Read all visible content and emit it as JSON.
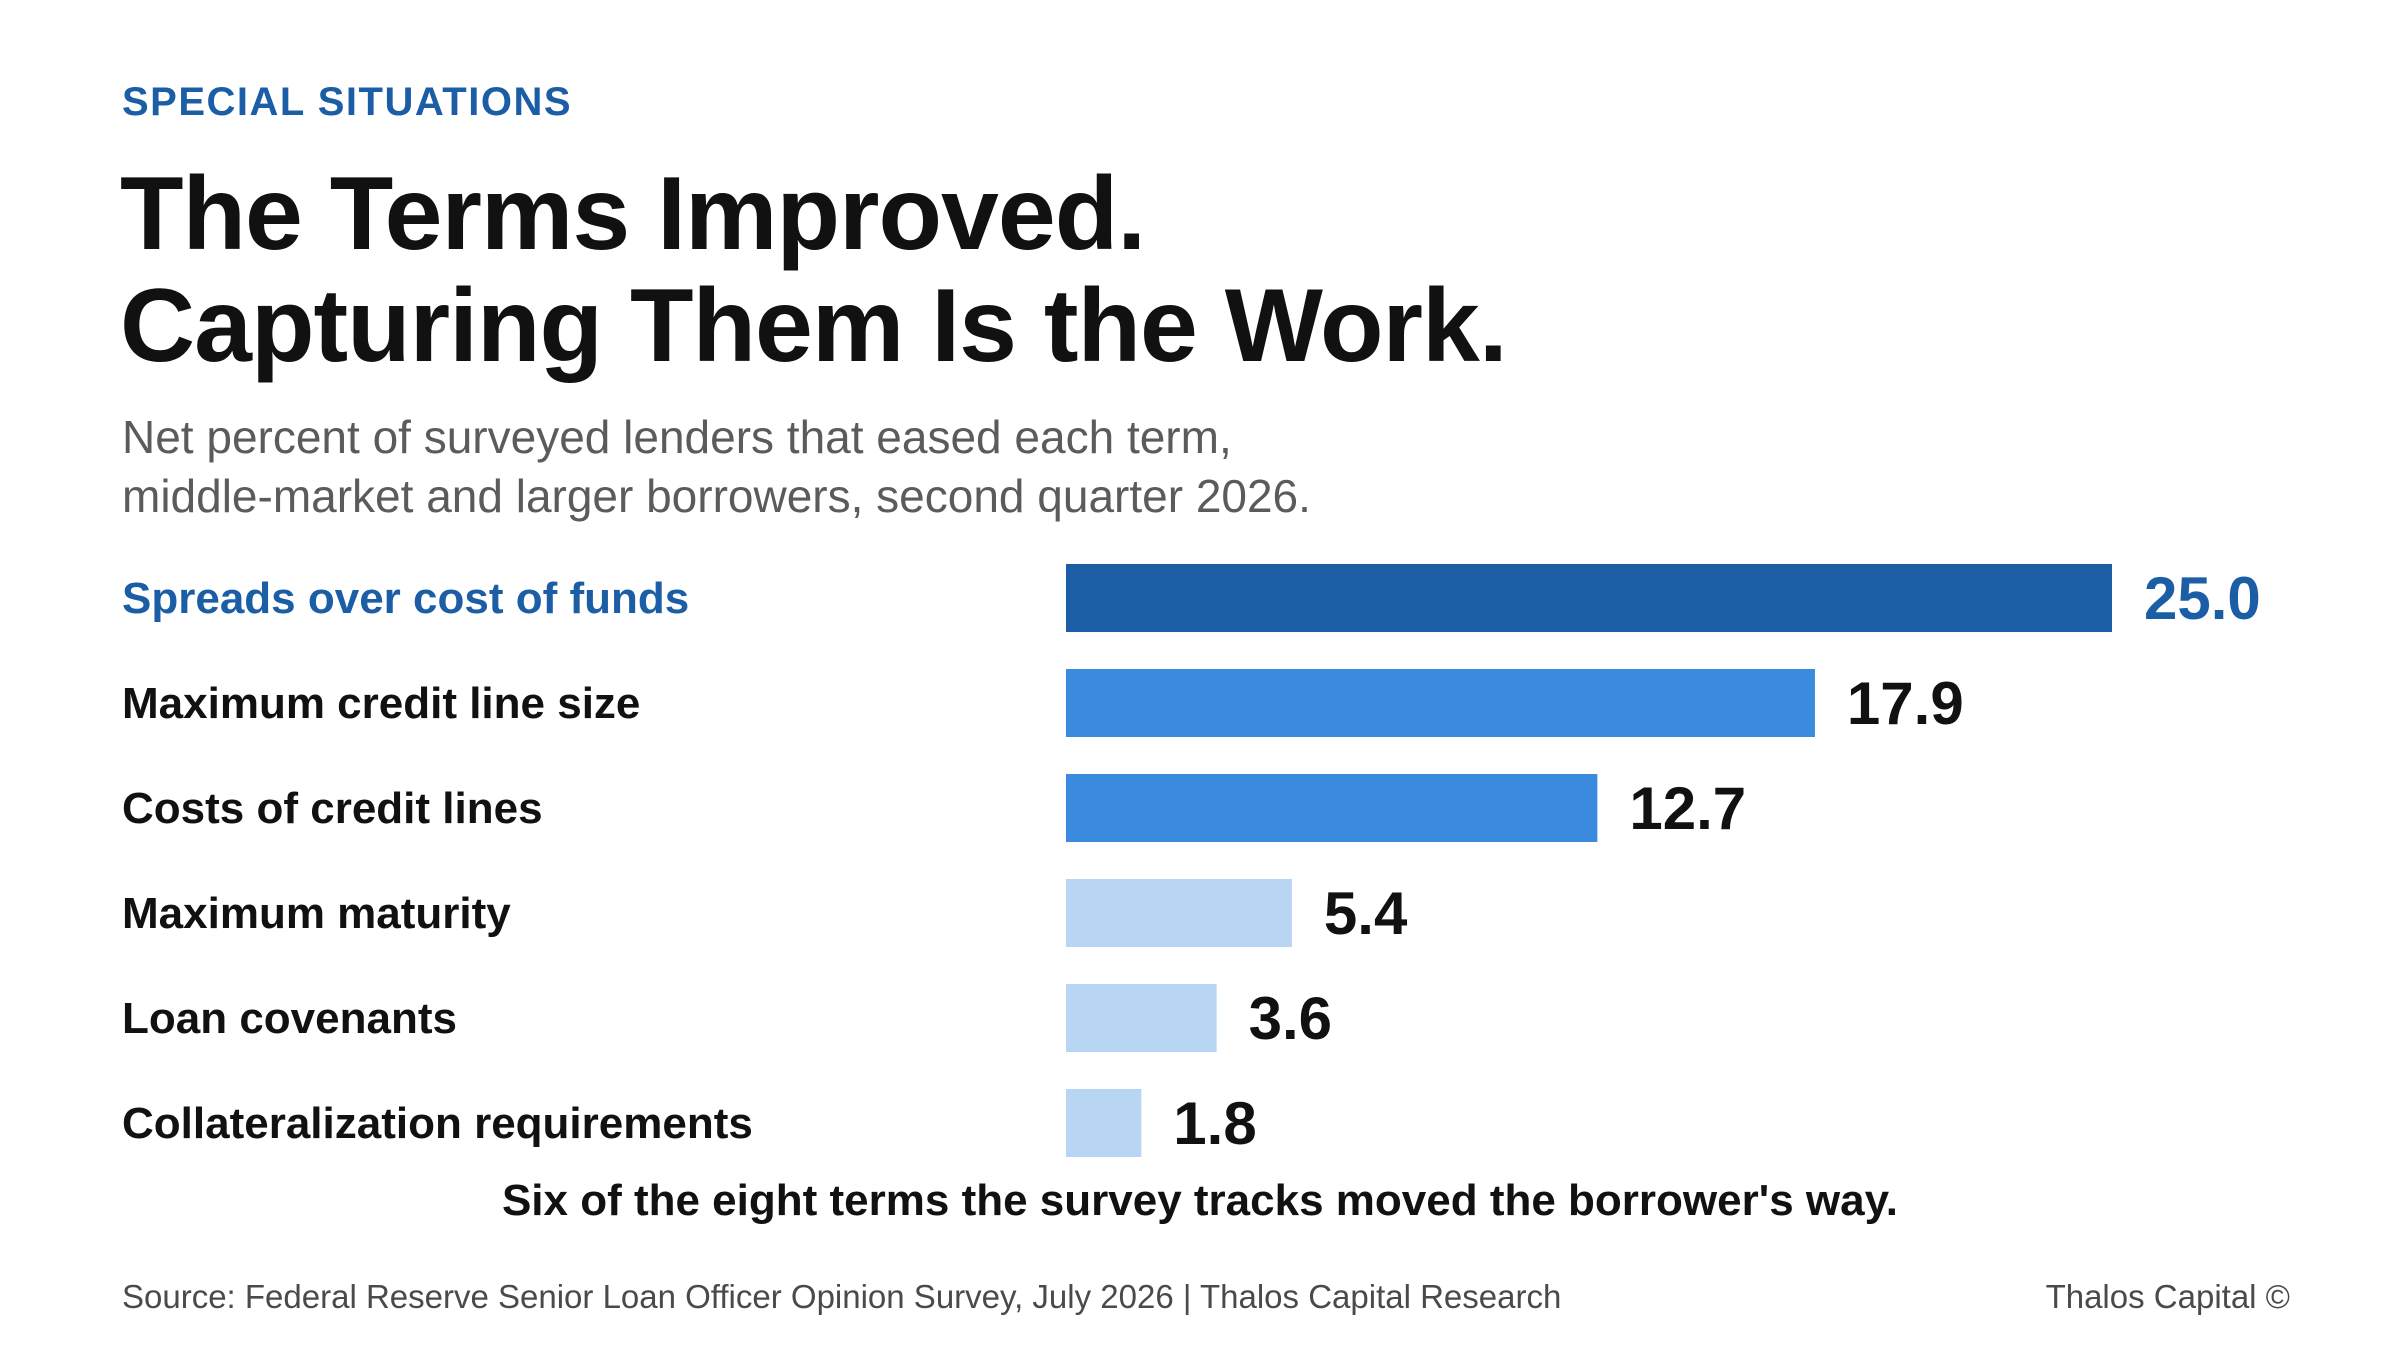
{
  "header": {
    "kicker": "SPECIAL SITUATIONS",
    "title_line1": "The Terms Improved.",
    "title_line2": "Capturing Them Is the Work.",
    "subtitle_line1": "Net percent of surveyed lenders that eased each term,",
    "subtitle_line2": "middle-market and larger borrowers, second quarter 2026."
  },
  "colors": {
    "highlight": "#1b5ea6",
    "mid": "#3a8ade",
    "light": "#b8d5f3",
    "text": "#111111"
  },
  "chart_data": {
    "type": "bar",
    "orientation": "horizontal",
    "categories": [
      "Spreads over cost of funds",
      "Maximum credit line size",
      "Costs of credit lines",
      "Maximum maturity",
      "Loan covenants",
      "Collateralization requirements"
    ],
    "values": [
      25.0,
      17.9,
      12.7,
      5.4,
      3.6,
      1.8
    ],
    "value_labels": [
      "25.0",
      "17.9",
      "12.7",
      "5.4",
      "3.6",
      "1.8"
    ],
    "bar_tones": [
      "highlight",
      "mid",
      "mid",
      "light",
      "light",
      "light"
    ],
    "xlim": [
      0,
      25
    ],
    "grid": false,
    "legend": "none"
  },
  "annotation": "Six of the eight terms the survey tracks moved the borrower's way.",
  "footer": {
    "source": "Source: Federal Reserve Senior Loan Officer Opinion Survey, July 2026 | Thalos Capital Research",
    "brand": "Thalos Capital ©"
  }
}
